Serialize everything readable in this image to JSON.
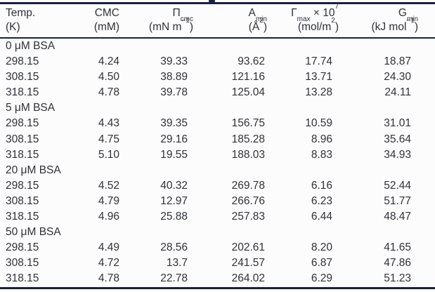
{
  "colors": {
    "rule": "#1a2040",
    "text": "#2f3136",
    "background": "#fcfcfd"
  },
  "table": {
    "header": {
      "temp": {
        "line1": "Temp.",
        "line2": "(K)"
      },
      "cmc": {
        "line1": "CMC",
        "line2": "(mM)"
      },
      "pi": {
        "sym": "Π",
        "sub": "cmc",
        "u_pre": "(mN m",
        "u_sup": "−1",
        "u_post": ")"
      },
      "amin": {
        "sym": "A",
        "sub": "min",
        "u_pre": "(Å",
        "u_sup": "2",
        "u_post": ")"
      },
      "gamma": {
        "sym": "Γ",
        "sub": "max",
        "mult": " × 10",
        "sup": "7",
        "u_pre": "(mol/m",
        "u_sup": "2",
        "u_post": ")"
      },
      "gmin": {
        "sym": "G",
        "sub": "min",
        "u_pre": "(kJ mol",
        "u_sup": "−1",
        "u_post": ")"
      }
    },
    "rows": [
      {
        "label": "0 μM BSA"
      },
      {
        "temp": "298.15",
        "cmc": "4.24",
        "pi": "39.33",
        "amin": "93.62",
        "gamma": "17.74",
        "gmin": "18.87"
      },
      {
        "temp": "308.15",
        "cmc": "4.50",
        "pi": "38.89",
        "amin": "121.16",
        "gamma": "13.71",
        "gmin": "24.30"
      },
      {
        "temp": "318.15",
        "cmc": "4.78",
        "pi": "39.78",
        "amin": "125.04",
        "gamma": "13.28",
        "gmin": "24.11"
      },
      {
        "label": "5 μM BSA"
      },
      {
        "temp": "298.15",
        "cmc": "4.43",
        "pi": "39.35",
        "amin": "156.75",
        "gamma": "10.59",
        "gmin": "31.01"
      },
      {
        "temp": "308.15",
        "cmc": "4.75",
        "pi": "29.16",
        "amin": "185.28",
        "gamma": "8.96",
        "gmin": "35.64"
      },
      {
        "temp": "318.15",
        "cmc": "5.10",
        "pi": "19.55",
        "amin": "188.03",
        "gamma": "8.83",
        "gmin": "34.93"
      },
      {
        "label": "20 μM BSA"
      },
      {
        "temp": "298.15",
        "cmc": "4.52",
        "pi": "40.32",
        "amin": "269.78",
        "gamma": "6.16",
        "gmin": "52.44"
      },
      {
        "temp": "308.15",
        "cmc": "4.79",
        "pi": "12.97",
        "amin": "266.76",
        "gamma": "6.23",
        "gmin": "51.77"
      },
      {
        "temp": "318.15",
        "cmc": "4.96",
        "pi": "25.88",
        "amin": "257.83",
        "gamma": "6.44",
        "gmin": "48.47"
      },
      {
        "label": "50 μM BSA"
      },
      {
        "temp": "298.15",
        "cmc": "4.49",
        "pi": "28.56",
        "amin": "202.61",
        "gamma": "8.20",
        "gmin": "41.65"
      },
      {
        "temp": "308.15",
        "cmc": "4.72",
        "pi": "13.7",
        "amin": "241.57",
        "gamma": "6.87",
        "gmin": "47.86"
      },
      {
        "temp": "318.15",
        "cmc": "4.78",
        "pi": "22.78",
        "amin": "264.02",
        "gamma": "6.29",
        "gmin": "51.23"
      }
    ]
  }
}
